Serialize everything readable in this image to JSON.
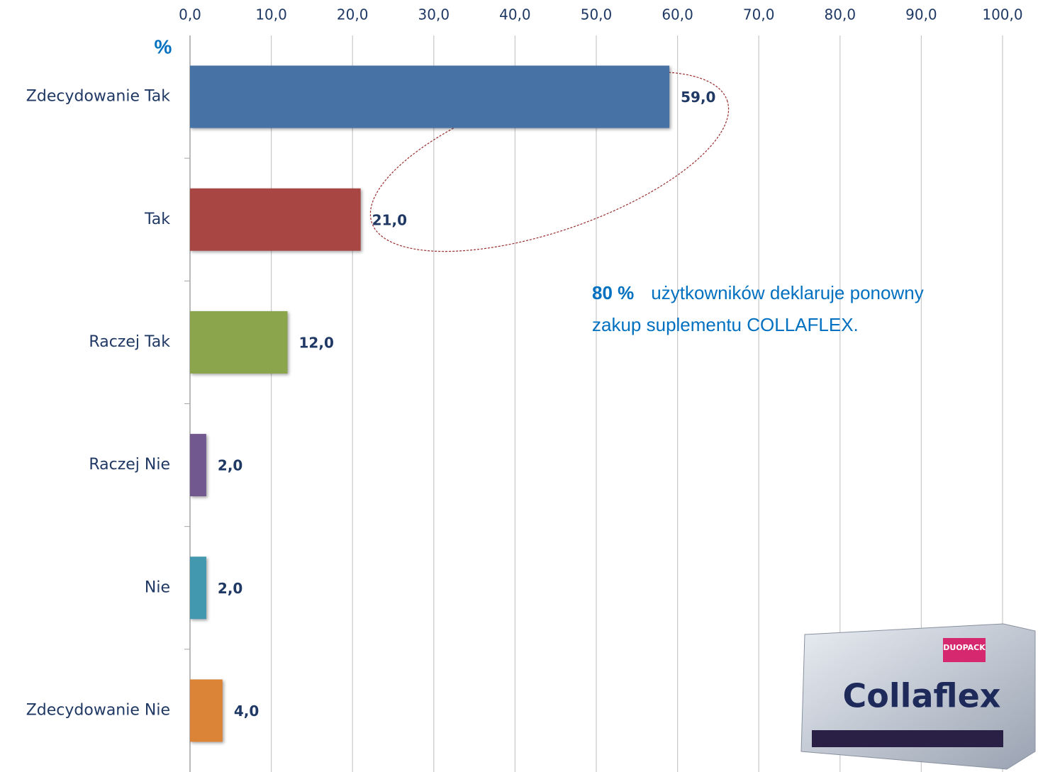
{
  "chart_data": {
    "type": "hbar",
    "unit_label": "%",
    "categories": [
      "Zdecydowanie Tak",
      "Tak",
      "Raczej Tak",
      "Raczej Nie",
      "Nie",
      "Zdecydowanie Nie"
    ],
    "values": [
      59,
      21,
      12,
      2,
      2,
      4
    ],
    "value_labels": [
      "59,0",
      "21,0",
      "12,0",
      "2,0",
      "2,0",
      "4,0"
    ],
    "colors": [
      "#4672a6",
      "#a74643",
      "#8aa54b",
      "#71588f",
      "#4198af",
      "#db8438"
    ],
    "xlim": [
      0,
      100
    ],
    "xticks": [
      {
        "value": 0,
        "label": "0,0"
      },
      {
        "value": 10,
        "label": "10,0"
      },
      {
        "value": 20,
        "label": "20,0"
      },
      {
        "value": 30,
        "label": "30,0"
      },
      {
        "value": 40,
        "label": "40,0"
      },
      {
        "value": 50,
        "label": "50,0"
      },
      {
        "value": 60,
        "label": "60,0"
      },
      {
        "value": 70,
        "label": "70,0"
      },
      {
        "value": 80,
        "label": "80,0"
      },
      {
        "value": 90,
        "label": "90,0"
      },
      {
        "value": 100,
        "label": "100,0"
      }
    ],
    "grid": true,
    "annotation": {
      "highlight": "80 %",
      "lines": [
        "użytkowników deklaruje ponowny",
        "zakup suplementu COLLAFLEX."
      ]
    },
    "product": {
      "brand": "Collaflex",
      "badge": "DUOPACK"
    }
  }
}
